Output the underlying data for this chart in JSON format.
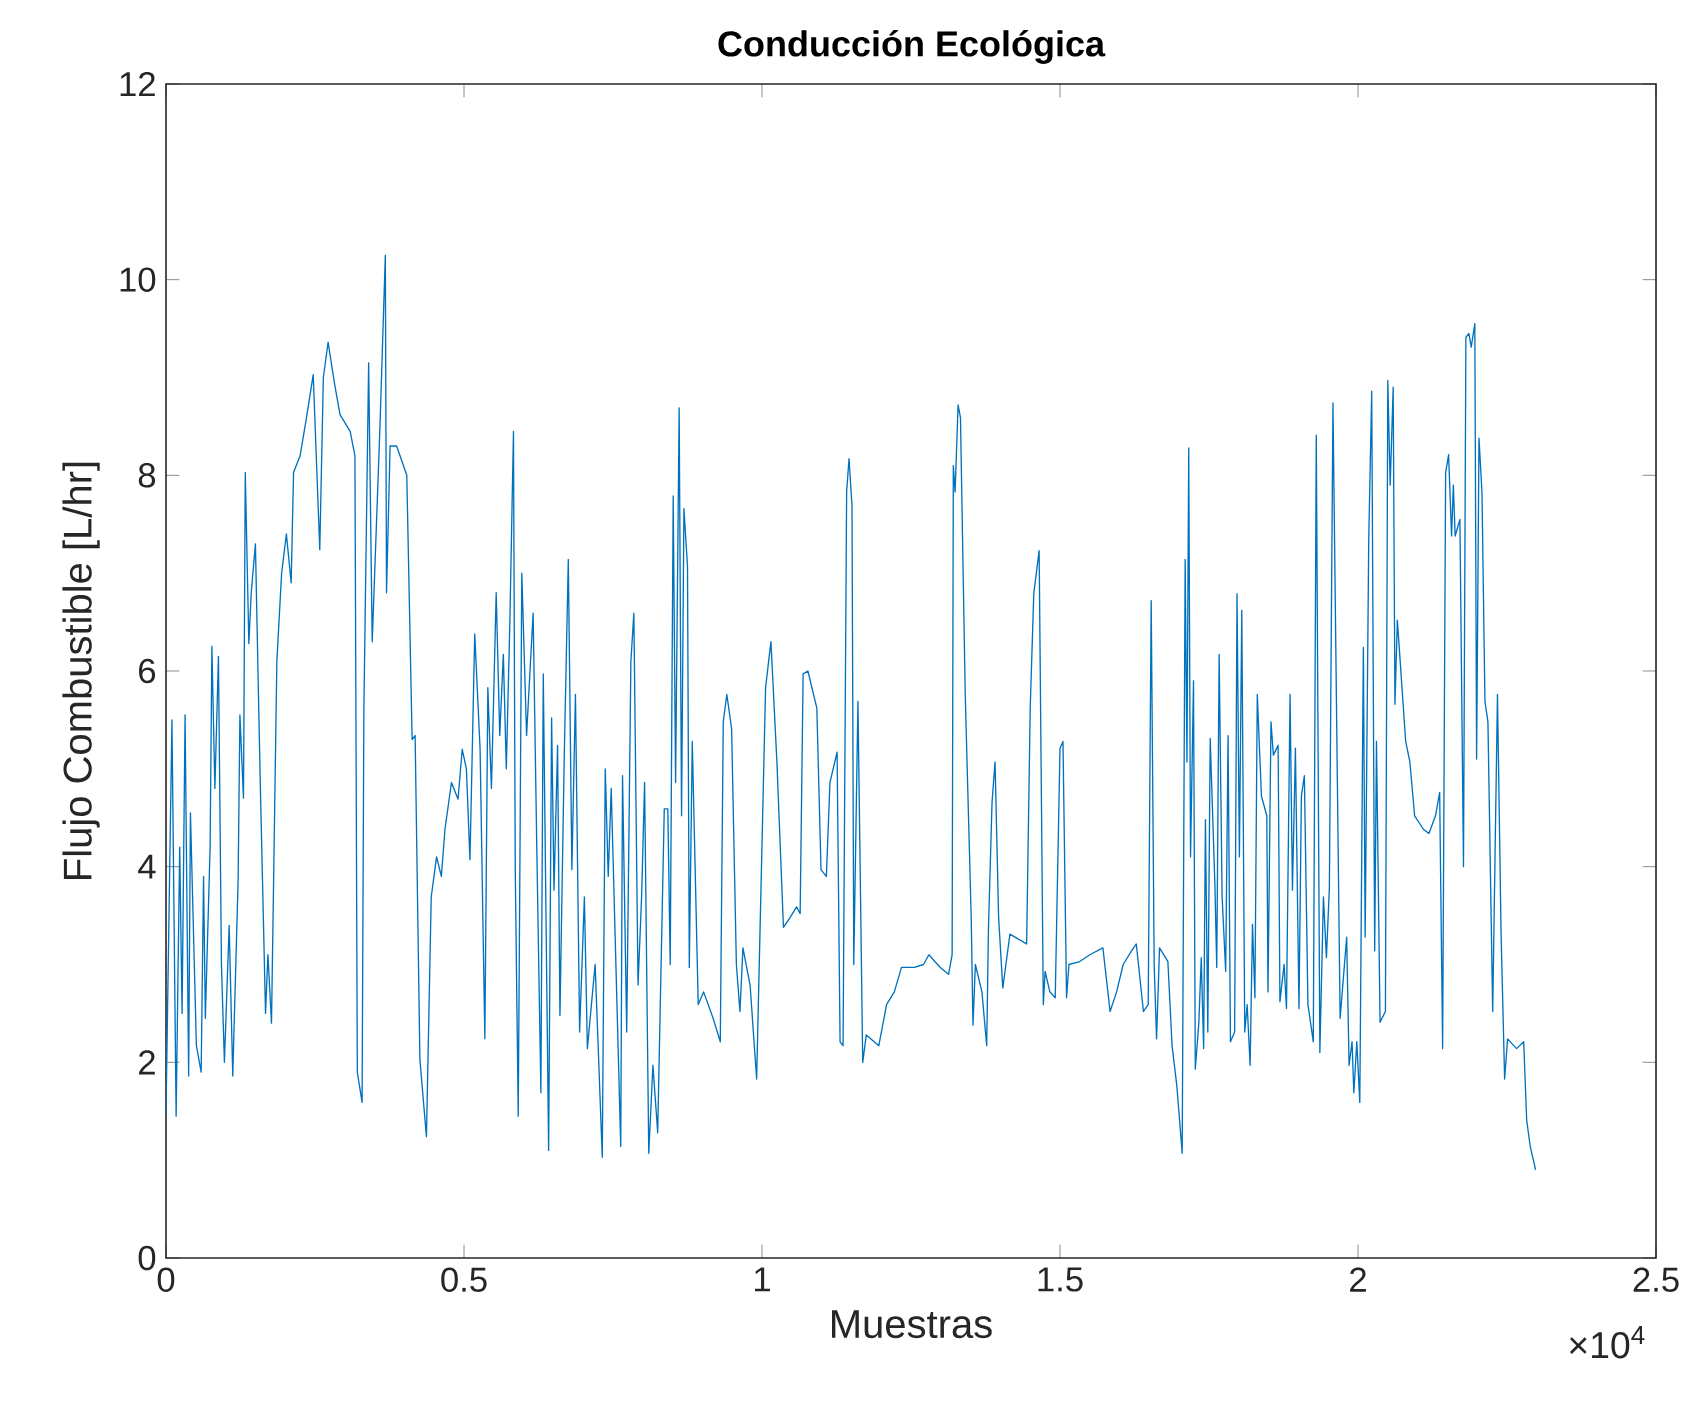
{
  "chart_data": {
    "type": "line",
    "title": "Conducción Ecológica",
    "xlabel": "Muestras",
    "ylabel": "Flujo Combustible [L/hr]",
    "annotations": [
      "×10$^{4}$"
    ],
    "xlim": [
      0,
      2.5
    ],
    "xticks": [
      0,
      0.5,
      1,
      1.5,
      2,
      2.5
    ],
    "ylim": [
      0,
      12
    ],
    "yticks": [
      0,
      2,
      4,
      6,
      8,
      10,
      12
    ],
    "series": [
      {
        "color": "#0072bd",
        "x": [
          0.0,
          0.01,
          0.017,
          0.023,
          0.027,
          0.032,
          0.038,
          0.041,
          0.051,
          0.059,
          0.063,
          0.066,
          0.074,
          0.077,
          0.082,
          0.088,
          0.093,
          0.098,
          0.106,
          0.112,
          0.121,
          0.124,
          0.13,
          0.133,
          0.139,
          0.143,
          0.15,
          0.158,
          0.167,
          0.171,
          0.177,
          0.186,
          0.194,
          0.202,
          0.21,
          0.214,
          0.225,
          0.236,
          0.247,
          0.258,
          0.264,
          0.272,
          0.283,
          0.292,
          0.309,
          0.317,
          0.321,
          0.329,
          0.332,
          0.34,
          0.346,
          0.359,
          0.368,
          0.37,
          0.376,
          0.387,
          0.404,
          0.413,
          0.418,
          0.426,
          0.437,
          0.445,
          0.454,
          0.462,
          0.468,
          0.479,
          0.49,
          0.497,
          0.504,
          0.51,
          0.518,
          0.527,
          0.535,
          0.54,
          0.546,
          0.554,
          0.56,
          0.566,
          0.571,
          0.577,
          0.583,
          0.586,
          0.591,
          0.597,
          0.605,
          0.611,
          0.616,
          0.622,
          0.629,
          0.633,
          0.642,
          0.647,
          0.651,
          0.657,
          0.661,
          0.668,
          0.675,
          0.681,
          0.687,
          0.694,
          0.702,
          0.707,
          0.72,
          0.732,
          0.737,
          0.742,
          0.747,
          0.763,
          0.766,
          0.773,
          0.78,
          0.785,
          0.792,
          0.798,
          0.803,
          0.81,
          0.817,
          0.825,
          0.836,
          0.842,
          0.846,
          0.851,
          0.855,
          0.861,
          0.865,
          0.869,
          0.875,
          0.878,
          0.883,
          0.893,
          0.902,
          0.918,
          0.93,
          0.935,
          0.941,
          0.949,
          0.957,
          0.963,
          0.968,
          0.98,
          0.991,
          1.006,
          1.015,
          1.025,
          1.036,
          1.047,
          1.058,
          1.064,
          1.069,
          1.077,
          1.092,
          1.099,
          1.108,
          1.114,
          1.126,
          1.131,
          1.136,
          1.142,
          1.146,
          1.151,
          1.154,
          1.161,
          1.169,
          1.175,
          1.196,
          1.209,
          1.222,
          1.234,
          1.256,
          1.271,
          1.28,
          1.299,
          1.313,
          1.319,
          1.321,
          1.324,
          1.329,
          1.333,
          1.341,
          1.351,
          1.354,
          1.358,
          1.369,
          1.377,
          1.38,
          1.386,
          1.391,
          1.397,
          1.404,
          1.416,
          1.444,
          1.45,
          1.456,
          1.465,
          1.472,
          1.475,
          1.483,
          1.492,
          1.5,
          1.505,
          1.511,
          1.515,
          1.533,
          1.55,
          1.572,
          1.584,
          1.595,
          1.606,
          1.62,
          1.628,
          1.64,
          1.648,
          1.653,
          1.658,
          1.662,
          1.667,
          1.677,
          1.681,
          1.688,
          1.696,
          1.705,
          1.71,
          1.713,
          1.716,
          1.719,
          1.724,
          1.727,
          1.733,
          1.737,
          1.741,
          1.744,
          1.748,
          1.752,
          1.76,
          1.763,
          1.767,
          1.772,
          1.778,
          1.782,
          1.786,
          1.793,
          1.797,
          1.801,
          1.805,
          1.81,
          1.814,
          1.819,
          1.823,
          1.827,
          1.831,
          1.838,
          1.847,
          1.849,
          1.854,
          1.858,
          1.866,
          1.869,
          1.876,
          1.88,
          1.886,
          1.89,
          1.895,
          1.901,
          1.905,
          1.91,
          1.916,
          1.925,
          1.93,
          1.936,
          1.942,
          1.947,
          1.952,
          1.958,
          1.97,
          1.981,
          1.985,
          1.99,
          1.993,
          1.998,
          2.003,
          2.009,
          2.012,
          2.018,
          2.023,
          2.028,
          2.031,
          2.037,
          2.046,
          2.05,
          2.054,
          2.059,
          2.062,
          2.066,
          2.073,
          2.08,
          2.087,
          2.095,
          2.11,
          2.119,
          2.13,
          2.137,
          2.142,
          2.147,
          2.152,
          2.157,
          2.16,
          2.163,
          2.171,
          2.177,
          2.181,
          2.186,
          2.19,
          2.196,
          2.199,
          2.203,
          2.208,
          2.213,
          2.218,
          2.226,
          2.234,
          2.24,
          2.246,
          2.251,
          2.266,
          2.278,
          2.283,
          2.289,
          2.298
        ],
        "values": [
          1.48,
          5.5,
          1.45,
          4.2,
          2.5,
          5.55,
          1.86,
          4.55,
          2.17,
          1.9,
          3.9,
          2.45,
          4.2,
          6.25,
          4.8,
          6.15,
          3.0,
          2.0,
          3.4,
          1.86,
          3.86,
          5.55,
          4.7,
          8.03,
          6.28,
          6.8,
          7.3,
          4.9,
          2.5,
          3.1,
          2.4,
          6.1,
          7.0,
          7.4,
          6.9,
          8.03,
          8.2,
          8.6,
          9.03,
          7.24,
          9.0,
          9.36,
          8.93,
          8.62,
          8.45,
          8.2,
          1.9,
          1.59,
          5.6,
          9.15,
          6.3,
          8.5,
          10.25,
          6.8,
          8.3,
          8.3,
          8.0,
          5.3,
          5.34,
          2.03,
          1.24,
          3.69,
          4.1,
          3.9,
          4.38,
          4.86,
          4.69,
          5.2,
          5.0,
          4.07,
          6.38,
          5.2,
          2.24,
          5.83,
          4.8,
          6.8,
          5.34,
          6.17,
          5.0,
          6.52,
          8.45,
          3.97,
          1.45,
          7.0,
          5.34,
          6.03,
          6.59,
          4.24,
          1.69,
          5.97,
          1.1,
          5.52,
          3.76,
          5.24,
          2.48,
          5.07,
          7.14,
          3.97,
          5.76,
          2.31,
          3.69,
          2.14,
          3.0,
          1.03,
          5.0,
          3.9,
          4.8,
          1.14,
          4.93,
          2.31,
          6.1,
          6.59,
          2.79,
          3.69,
          4.86,
          1.07,
          1.97,
          1.28,
          4.59,
          4.59,
          3.0,
          7.79,
          4.86,
          8.69,
          4.52,
          7.66,
          7.07,
          2.97,
          5.28,
          2.59,
          2.72,
          2.45,
          2.21,
          5.48,
          5.76,
          5.41,
          3.0,
          2.52,
          3.17,
          2.79,
          1.83,
          5.83,
          6.3,
          5.07,
          3.38,
          3.48,
          3.59,
          3.52,
          5.97,
          6.0,
          5.62,
          3.97,
          3.9,
          4.86,
          5.17,
          2.21,
          2.17,
          7.83,
          8.17,
          7.69,
          3.0,
          5.69,
          2.0,
          2.28,
          2.17,
          2.59,
          2.72,
          2.97,
          2.97,
          3.0,
          3.1,
          2.97,
          2.9,
          3.1,
          8.1,
          7.83,
          8.72,
          8.59,
          5.76,
          3.48,
          2.38,
          3.0,
          2.72,
          2.17,
          3.38,
          4.66,
          5.07,
          3.48,
          2.76,
          3.31,
          3.21,
          5.62,
          6.79,
          7.23,
          2.59,
          2.93,
          2.72,
          2.66,
          5.21,
          5.28,
          2.66,
          3.0,
          3.03,
          3.1,
          3.17,
          2.52,
          2.72,
          3.0,
          3.14,
          3.21,
          2.52,
          2.59,
          6.72,
          3.0,
          2.24,
          3.17,
          3.07,
          3.03,
          2.17,
          1.76,
          1.07,
          7.14,
          5.07,
          8.28,
          4.1,
          5.9,
          1.93,
          2.41,
          3.07,
          2.14,
          4.48,
          2.31,
          5.31,
          3.79,
          2.97,
          6.17,
          3.69,
          2.93,
          5.34,
          2.21,
          2.31,
          6.79,
          4.1,
          6.62,
          2.31,
          2.59,
          1.97,
          3.41,
          2.66,
          5.76,
          4.72,
          4.52,
          2.72,
          5.48,
          5.14,
          5.24,
          2.62,
          3.0,
          2.55,
          5.76,
          3.76,
          5.21,
          2.55,
          4.72,
          4.93,
          2.59,
          2.21,
          8.41,
          2.1,
          3.69,
          3.07,
          3.79,
          8.74,
          2.45,
          3.28,
          1.97,
          2.21,
          1.69,
          2.21,
          1.59,
          6.24,
          3.28,
          7.34,
          8.86,
          3.14,
          5.28,
          2.41,
          2.52,
          8.97,
          7.9,
          8.9,
          5.66,
          6.52,
          5.9,
          5.28,
          5.07,
          4.52,
          4.38,
          4.34,
          4.52,
          4.76,
          2.14,
          8.03,
          8.21,
          7.38,
          7.9,
          7.38,
          7.55,
          4.0,
          9.41,
          9.45,
          9.31,
          9.55,
          5.1,
          8.38,
          7.83,
          5.69,
          5.48,
          2.52,
          5.76,
          3.34,
          1.83,
          2.24,
          2.14,
          2.21,
          1.41,
          1.14,
          0.9
        ]
      }
    ]
  }
}
